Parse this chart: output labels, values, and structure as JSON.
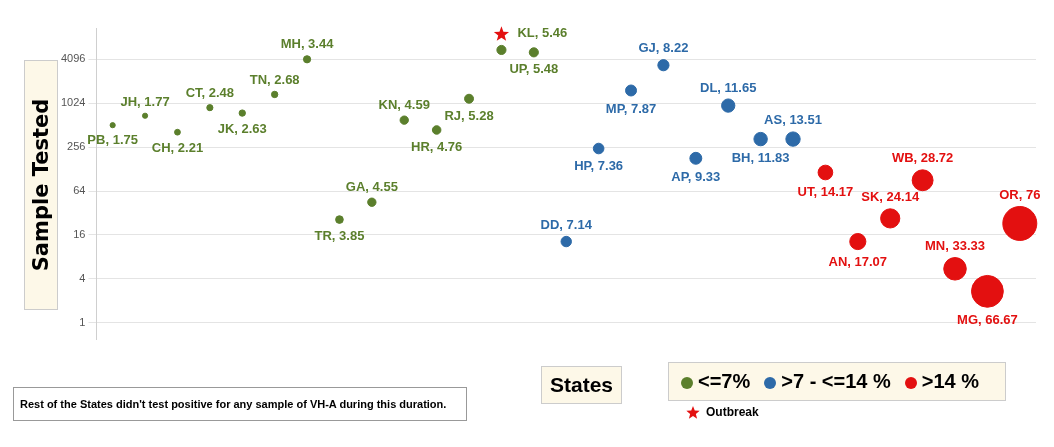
{
  "chart_data": {
    "type": "bubble",
    "ylabel": "Sample Tested",
    "xlabel": "States",
    "categories": [
      null,
      null,
      null,
      null,
      null,
      null,
      null,
      null,
      null,
      null,
      null,
      null,
      null,
      null,
      null,
      null,
      null,
      null,
      null,
      null,
      null,
      null,
      null,
      null,
      null,
      null,
      null,
      null,
      null
    ],
    "series": [
      {
        "name": "<=7%",
        "color": "#5b7f2c",
        "values": [
          512,
          690,
          410,
          890,
          750,
          1350,
          4096,
          26,
          45,
          600,
          440,
          1180,
          5500,
          5100,
          null,
          null,
          null,
          null,
          null,
          null,
          null,
          null,
          null,
          null,
          null,
          null,
          null,
          null,
          null
        ],
        "sizes": [
          0.023,
          0.023,
          0.029,
          0.033,
          0.035,
          0.035,
          0.045,
          0.051,
          0.06,
          0.06,
          0.063,
          0.069,
          0.072,
          0.072,
          null,
          null,
          null,
          null,
          null,
          null,
          null,
          null,
          null,
          null,
          null,
          null,
          null,
          null,
          null
        ]
      },
      {
        "name": ">7 - <=14 %",
        "color": "#2d6aa8",
        "values": [
          null,
          null,
          null,
          null,
          null,
          null,
          null,
          null,
          null,
          null,
          null,
          null,
          null,
          null,
          13,
          245,
          1530,
          3400,
          180,
          950,
          330,
          330,
          null,
          null,
          null,
          null,
          null,
          null,
          null
        ],
        "sizes": [
          null,
          null,
          null,
          null,
          null,
          null,
          null,
          null,
          null,
          null,
          null,
          null,
          null,
          null,
          0.094,
          0.097,
          0.104,
          0.108,
          0.123,
          0.153,
          0.156,
          0.178,
          null,
          null,
          null,
          null,
          null,
          null,
          null
        ]
      },
      {
        "name": ">14 %",
        "color": "#e31010",
        "values": [
          null,
          null,
          null,
          null,
          null,
          null,
          null,
          null,
          null,
          null,
          null,
          null,
          null,
          null,
          null,
          null,
          null,
          null,
          null,
          null,
          null,
          null,
          115,
          13,
          27,
          90,
          5.5,
          2.7,
          23
        ],
        "sizes": [
          null,
          null,
          null,
          null,
          null,
          null,
          null,
          null,
          null,
          null,
          null,
          null,
          null,
          null,
          null,
          null,
          null,
          null,
          null,
          null,
          null,
          null,
          0.186,
          0.225,
          0.318,
          0.378,
          0.439,
          0.877,
          1
        ]
      },
      {
        "name": "Outbreak",
        "type": "scatter",
        "marker": "star",
        "color": "#e31010",
        "values": [
          null,
          null,
          null,
          null,
          null,
          null,
          null,
          null,
          null,
          null,
          null,
          null,
          9000,
          null,
          null,
          null,
          null,
          null,
          null,
          null,
          null,
          null,
          null,
          null,
          null,
          null,
          null,
          null,
          null
        ]
      }
    ],
    "log": "y",
    "ylim": [
      0.6,
      11000
    ],
    "yticks": [
      1,
      4,
      16,
      64,
      256,
      1024,
      4096
    ],
    "grid": "y",
    "legend": "bottom right",
    "annotations": [
      "Rest of the States didn't test positive for any sample of VH-A during this duration.",
      {
        "text": "PB, 1.75",
        "y": 512
      },
      {
        "text": "JH, 1.77",
        "y": 690
      },
      {
        "text": "CH, 2.21",
        "y": 410
      },
      {
        "text": "CT, 2.48",
        "y": 890
      },
      {
        "text": "JK, 2.63",
        "y": 750
      },
      {
        "text": "TN, 2.68",
        "y": 1350
      },
      {
        "text": "MH, 3.44",
        "y": 4096
      },
      {
        "text": "TR, 3.85",
        "y": 26
      },
      {
        "text": "GA, 4.55",
        "y": 45
      },
      {
        "text": "KN, 4.59",
        "y": 600
      },
      {
        "text": "HR, 4.76",
        "y": 440
      },
      {
        "text": "RJ, 5.28",
        "y": 1180
      },
      {
        "text": "KL, 5.46",
        "y": 5500
      },
      {
        "text": "UP, 5.48",
        "y": 5100
      },
      {
        "text": "DD, 7.14",
        "y": 13
      },
      {
        "text": "HP, 7.36",
        "y": 245
      },
      {
        "text": "MP, 7.87",
        "y": 1530
      },
      {
        "text": "GJ, 8.22",
        "y": 3400
      },
      {
        "text": "AP, 9.33",
        "y": 180
      },
      {
        "text": "DL, 11.65",
        "y": 950
      },
      {
        "text": "BH, 11.83",
        "y": 330
      },
      {
        "text": "AS, 13.51",
        "y": 330
      },
      {
        "text": "UT, 14.17",
        "y": 115
      },
      {
        "text": "AN, 17.07",
        "y": 13
      },
      {
        "text": "SK, 24.14",
        "y": 27
      },
      {
        "text": "WB, 28.72",
        "y": 90
      },
      {
        "text": "MN, 33.33",
        "y": 5.5
      },
      {
        "text": "MG, 66.67",
        "y": 2.7
      },
      {
        "text": "OR, 76",
        "y": 23
      }
    ]
  }
}
